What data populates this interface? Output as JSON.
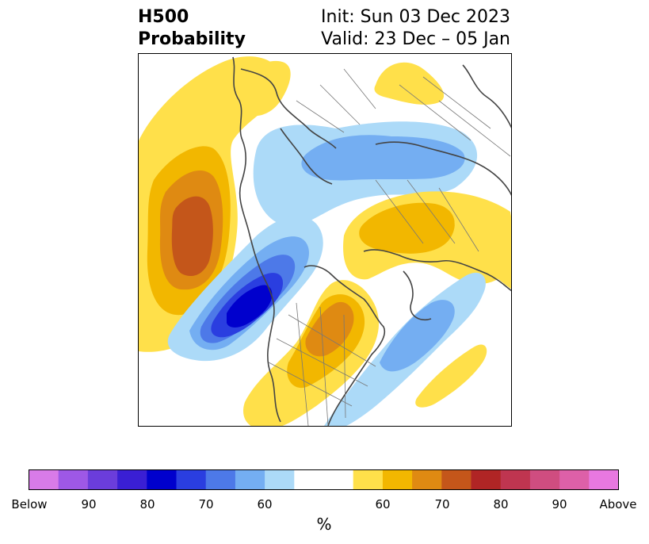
{
  "header": {
    "title_line1": "H500",
    "title_line2": "Probability",
    "init_label": "Init: Sun 03 Dec 2023",
    "valid_label": "Valid: 23 Dec – 05 Jan"
  },
  "colorbar": {
    "unit": "%",
    "tick_labels": [
      "Below",
      "90",
      "80",
      "70",
      "60",
      "60",
      "70",
      "80",
      "90",
      "Above"
    ],
    "colors": [
      "#d87be8",
      "#9e58e6",
      "#6b3ddb",
      "#3a1fd4",
      "#0000cd",
      "#2a3ee0",
      "#4d79e8",
      "#74aef2",
      "#acdaf8",
      "#ffffff",
      "#ffffff",
      "#ffe04a",
      "#f2b700",
      "#df8a12",
      "#c4561a",
      "#b02525",
      "#bf3550",
      "#cf4d80",
      "#dd60a8",
      "#e878e0"
    ]
  },
  "map_colors": {
    "above_60": "#ffe04a",
    "above_65": "#f2b700",
    "above_70": "#df8a12",
    "above_75": "#c4561a",
    "below_60": "#acdaf8",
    "below_65": "#74aef2",
    "below_70": "#4d79e8",
    "below_75": "#2a3ee0",
    "below_80": "#0000cd",
    "coastline": "#444444"
  }
}
